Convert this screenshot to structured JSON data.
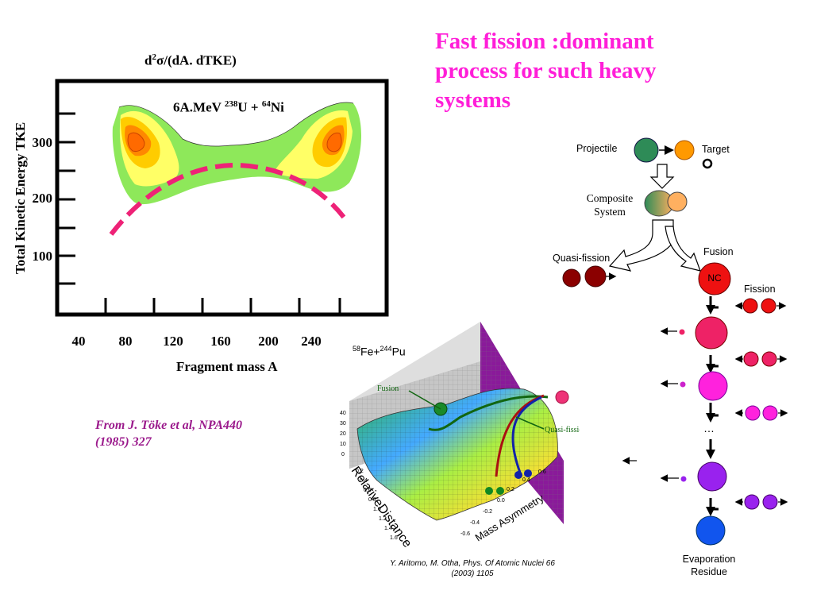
{
  "title": {
    "line1": "Fast fission :dominant",
    "line2": "process for such heavy",
    "line3": "systems"
  },
  "left_plot": {
    "top_label_main": "d",
    "top_label_sup": "2",
    "top_label_rest": "σ/(dA. dTKE)",
    "y_axis_title": "Total Kinetic Energy TKE",
    "x_axis_title": "Fragment mass A",
    "reaction": {
      "prefix": "6A.MeV ",
      "sup1": "238",
      "mid": "U + ",
      "sup2": "64",
      "suffix": "Ni"
    },
    "y_ticks": [
      "300",
      "200",
      "100"
    ],
    "x_ticks": [
      "40",
      "80",
      "120",
      "160",
      "200",
      "240"
    ],
    "colors": {
      "outer": "#8ee85a",
      "mid": "#ffff66",
      "inner": "#ffcc00",
      "core": "#ff8800",
      "center": "#ff6a00",
      "parabola": "#ee2277"
    }
  },
  "reference_1": {
    "line1": "From J. Töke et al, NPA440",
    "line2": "(1985) 327"
  },
  "surface_plot": {
    "title_prefix": "58",
    "title_mid": "Fe+",
    "title_sup2": "244",
    "title_suffix": "Pu",
    "fusion_label": "Fusion",
    "quasi_fission_label": "Quasi-fission",
    "relative_distance_label": "RelativeDistance",
    "mass_asymmetry_label": "Mass Asymmetry",
    "z_ticks": [
      "40",
      "30",
      "20",
      "10",
      "0"
    ],
    "rd_ticks": [
      "0.2",
      "0.4",
      "0.6",
      "0.8",
      "1.0",
      "1.2",
      "1.4",
      "1.6"
    ],
    "ma_ticks": [
      "0.6",
      "0.4",
      "0.2",
      "0.0",
      "-0.2",
      "-0.4",
      "-0.6"
    ]
  },
  "reference_2": {
    "line1": "Y. Aritomo, M. Otha, Phys. Of Atomic Nuclei 66",
    "line2": "(2003) 1105"
  },
  "diagram": {
    "projectile": "Projectile",
    "target": "Target",
    "composite_line1": "Composite",
    "composite_line2": "System",
    "quasi_fission": "Quasi-fission",
    "fusion": "Fusion",
    "nc": "NC",
    "fission": "Fission",
    "ellipsis": "…",
    "evaporation_line1": "Evaporation",
    "evaporation_line2": "Residue",
    "colors": {
      "projectile": "#2e8b57",
      "target": "#ff9900",
      "quasi": "#8b0000",
      "nc": "#ee1111",
      "step2": "#ee2266",
      "step3": "#ff22dd",
      "step4": "#9922ee",
      "residue": "#1155ee"
    }
  }
}
